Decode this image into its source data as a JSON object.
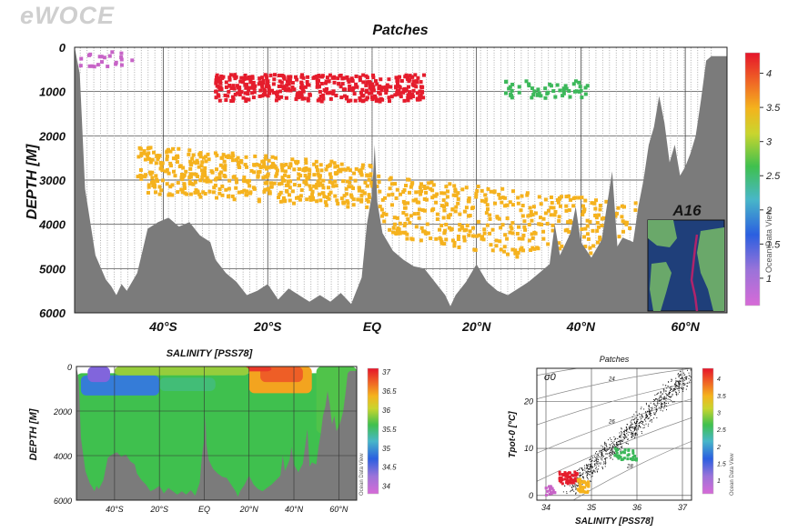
{
  "brand": "eWOCE",
  "colors": {
    "terrain": "#7b7b7b",
    "grid": "#2a2a2a",
    "background": "#ffffff"
  },
  "chart_data": [
    {
      "id": "main-section",
      "type": "scatter",
      "title": "Patches",
      "ylabel": "DEPTH [M]",
      "xlabel": "",
      "x_unit": "latitude",
      "xlim": [
        -57,
        68
      ],
      "ylim": [
        6000,
        0
      ],
      "yticks": [
        0,
        1000,
        2000,
        3000,
        4000,
        5000,
        6000
      ],
      "xticks": [
        {
          "value": -40,
          "label": "40°S"
        },
        {
          "value": -20,
          "label": "20°S"
        },
        {
          "value": 0,
          "label": "EQ"
        },
        {
          "value": 20,
          "label": "20°N"
        },
        {
          "value": 40,
          "label": "40°N"
        },
        {
          "value": 60,
          "label": "60°N"
        }
      ],
      "colorbar": {
        "min": 0.6,
        "max": 4.3,
        "ticks": [
          1,
          1.5,
          2,
          2.5,
          3,
          3.5,
          4
        ]
      },
      "inset_label": "A16",
      "watermark": "Ocean Data View",
      "bottom_profile": [
        [
          -57,
          0
        ],
        [
          -56,
          600
        ],
        [
          -55,
          3200
        ],
        [
          -53,
          4700
        ],
        [
          -51,
          5250
        ],
        [
          -50,
          5400
        ],
        [
          -49,
          5600
        ],
        [
          -48,
          5350
        ],
        [
          -47,
          5500
        ],
        [
          -45,
          5100
        ],
        [
          -44,
          4600
        ],
        [
          -43,
          4100
        ],
        [
          -41,
          3950
        ],
        [
          -39,
          3850
        ],
        [
          -37,
          4050
        ],
        [
          -35,
          3950
        ],
        [
          -33,
          4250
        ],
        [
          -31,
          4400
        ],
        [
          -30,
          4800
        ],
        [
          -28,
          5100
        ],
        [
          -26,
          5300
        ],
        [
          -24,
          5600
        ],
        [
          -22,
          5500
        ],
        [
          -20,
          5350
        ],
        [
          -18,
          5700
        ],
        [
          -16,
          5450
        ],
        [
          -14,
          5600
        ],
        [
          -12,
          5750
        ],
        [
          -10,
          5600
        ],
        [
          -8,
          5750
        ],
        [
          -6,
          5550
        ],
        [
          -4,
          5800
        ],
        [
          -2,
          5200
        ],
        [
          -1,
          4000
        ],
        [
          0,
          3300
        ],
        [
          0.5,
          2200
        ],
        [
          1,
          3500
        ],
        [
          2,
          4200
        ],
        [
          4,
          4600
        ],
        [
          6,
          4800
        ],
        [
          8,
          4950
        ],
        [
          10,
          5000
        ],
        [
          12,
          5300
        ],
        [
          14,
          5600
        ],
        [
          15,
          5850
        ],
        [
          16,
          5600
        ],
        [
          18,
          5300
        ],
        [
          20,
          4900
        ],
        [
          22,
          5300
        ],
        [
          24,
          5500
        ],
        [
          26,
          5600
        ],
        [
          28,
          5450
        ],
        [
          30,
          5300
        ],
        [
          32,
          5100
        ],
        [
          34,
          4900
        ],
        [
          35,
          4000
        ],
        [
          36,
          4700
        ],
        [
          38,
          4200
        ],
        [
          39,
          3600
        ],
        [
          40,
          4400
        ],
        [
          42,
          4750
        ],
        [
          44,
          4350
        ],
        [
          46,
          2800
        ],
        [
          47,
          4500
        ],
        [
          48,
          4300
        ],
        [
          50,
          4400
        ],
        [
          51,
          3600
        ],
        [
          52,
          3000
        ],
        [
          53,
          2200
        ],
        [
          54,
          1800
        ],
        [
          55,
          1100
        ],
        [
          56,
          1700
        ],
        [
          57,
          2600
        ],
        [
          58,
          2200
        ],
        [
          59,
          2900
        ],
        [
          60,
          2700
        ],
        [
          61,
          2400
        ],
        [
          62,
          2000
        ],
        [
          63,
          1200
        ],
        [
          64,
          300
        ],
        [
          65,
          200
        ],
        [
          66,
          200
        ],
        [
          67,
          200
        ],
        [
          68,
          200
        ]
      ],
      "patches": [
        {
          "value": 0.9,
          "color": "#c764c7",
          "lat": [
            -56,
            -45
          ],
          "depth": [
            100,
            450
          ],
          "n": 22,
          "seed": 3
        },
        {
          "value": 3.9,
          "color": "#e51c2c",
          "lat": [
            -30,
            10
          ],
          "depth": [
            620,
            1230
          ],
          "n": 420,
          "seed": 7
        },
        {
          "value": 2.2,
          "color": "#3cb85a",
          "lat": [
            25,
            43
          ],
          "depth": [
            750,
            1150
          ],
          "n": 55,
          "seed": 11
        },
        {
          "value": 3.0,
          "color": "#f5b21e",
          "lat": [
            -45,
            55
          ],
          "depth": [
            1800,
            5950
          ],
          "n": 900,
          "seed": 19
        }
      ]
    },
    {
      "id": "salinity-section",
      "type": "heatmap",
      "title": "SALINITY [PSS78]",
      "ylabel": "DEPTH [M]",
      "xlabel": "",
      "xlim": [
        -57,
        68
      ],
      "ylim": [
        6000,
        0
      ],
      "yticks": [
        0,
        2000,
        4000,
        6000
      ],
      "xticks": [
        {
          "value": -40,
          "label": "40°S"
        },
        {
          "value": -20,
          "label": "20°S"
        },
        {
          "value": 0,
          "label": "EQ"
        },
        {
          "value": 20,
          "label": "20°N"
        },
        {
          "value": 40,
          "label": "40°N"
        },
        {
          "value": 60,
          "label": "60°N"
        }
      ],
      "colorbar": {
        "min": 33.8,
        "max": 37.1,
        "ticks": [
          34,
          34.5,
          35,
          35.5,
          36,
          36.5,
          37
        ]
      },
      "watermark": "Ocean Data View",
      "field_bands": [
        {
          "value": 34.8,
          "lat": [
            -57,
            68
          ],
          "depth": [
            300,
            6000
          ]
        },
        {
          "value": 34.3,
          "lat": [
            -55,
            -20
          ],
          "depth": [
            400,
            1300
          ]
        },
        {
          "value": 34.0,
          "lat": [
            -52,
            -42
          ],
          "depth": [
            0,
            700
          ]
        },
        {
          "value": 34.7,
          "lat": [
            -20,
            5
          ],
          "depth": [
            500,
            1100
          ]
        },
        {
          "value": 35.9,
          "lat": [
            20,
            48
          ],
          "depth": [
            0,
            1200
          ]
        },
        {
          "value": 36.4,
          "lat": [
            25,
            44
          ],
          "depth": [
            0,
            700
          ]
        },
        {
          "value": 36.7,
          "lat": [
            -25,
            30
          ],
          "depth": [
            0,
            220
          ]
        },
        {
          "value": 35.3,
          "lat": [
            -40,
            20
          ],
          "depth": [
            0,
            400
          ]
        },
        {
          "value": 34.9,
          "lat": [
            50,
            68
          ],
          "depth": [
            0,
            3000
          ]
        }
      ]
    },
    {
      "id": "ts-diagram",
      "type": "scatter",
      "title": "Patches",
      "xlabel": "SALINITY [PSS78]",
      "ylabel": "Tpot-0 [°C]",
      "xlim": [
        33.8,
        37.2
      ],
      "ylim": [
        -1,
        27
      ],
      "xticks": [
        34,
        35,
        36,
        37
      ],
      "yticks": [
        0,
        10,
        20
      ],
      "iso_label": "σ0",
      "colorbar": {
        "min": 0.6,
        "max": 4.3,
        "ticks": [
          1,
          1.5,
          2,
          2.5,
          3,
          3.5,
          4
        ]
      },
      "watermark": "Ocean Data View",
      "isopycnals": [
        {
          "label": "",
          "points": [
            [
              33.8,
              25.5
            ],
            [
              37.2,
              29.5
            ]
          ]
        },
        {
          "label": "24",
          "points": [
            [
              33.8,
              20.5
            ],
            [
              37.2,
              27.0
            ]
          ]
        },
        {
          "label": "",
          "points": [
            [
              33.8,
              15.0
            ],
            [
              37.2,
              24.0
            ]
          ]
        },
        {
          "label": "26",
          "points": [
            [
              33.8,
              9.0
            ],
            [
              37.2,
              20.5
            ]
          ]
        },
        {
          "label": "",
          "points": [
            [
              33.8,
              3.0
            ],
            [
              37.2,
              16.5
            ]
          ]
        },
        {
          "label": "28",
          "points": [
            [
              34.6,
              -1.0
            ],
            [
              37.2,
              11.5
            ]
          ]
        }
      ],
      "scatter_groups": [
        {
          "value": 0.9,
          "color": "#c764c7",
          "s_range": [
            34.0,
            34.2
          ],
          "t_range": [
            0.0,
            2.0
          ],
          "n": 18
        },
        {
          "value": 3.9,
          "color": "#e51c2c",
          "s_range": [
            34.3,
            34.7
          ],
          "t_range": [
            2.5,
            5.0
          ],
          "n": 60
        },
        {
          "value": 3.0,
          "color": "#f5b21e",
          "s_range": [
            34.7,
            34.95
          ],
          "t_range": [
            0.5,
            3.5
          ],
          "n": 40
        },
        {
          "value": 2.2,
          "color": "#3cb85a",
          "s_range": [
            35.5,
            36.0
          ],
          "t_range": [
            7.5,
            10.0
          ],
          "n": 35
        }
      ]
    }
  ]
}
